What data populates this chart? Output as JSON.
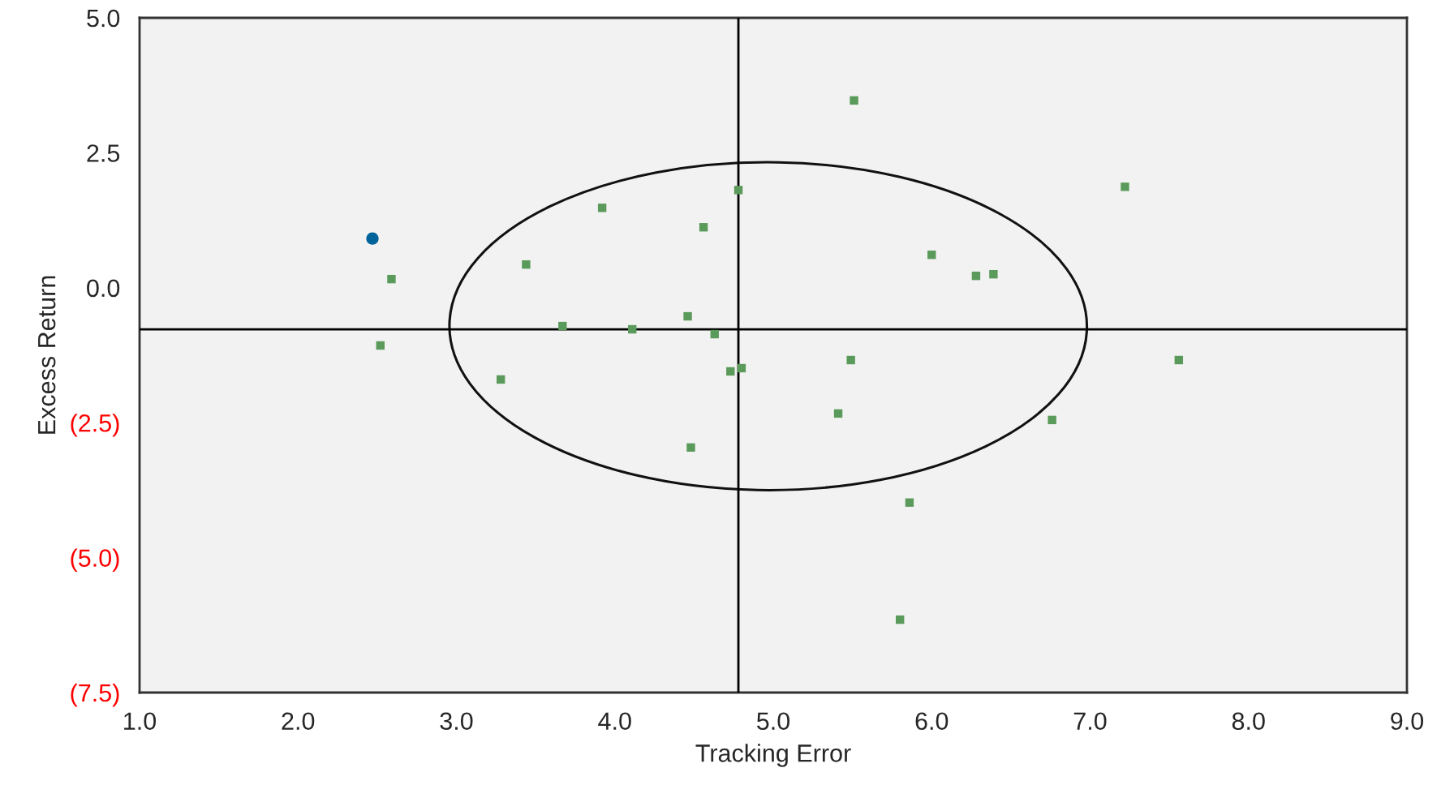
{
  "chart_data": {
    "type": "scatter",
    "xlabel": "Tracking Error",
    "ylabel": "Excess Return",
    "xlim": [
      1.0,
      9.0
    ],
    "xticks": [
      {
        "value": 1,
        "label": "1.0"
      },
      {
        "value": 2,
        "label": "2.0"
      },
      {
        "value": 3,
        "label": "3.0"
      },
      {
        "value": 4,
        "label": "4.0"
      },
      {
        "value": 5,
        "label": "5.0"
      },
      {
        "value": 6,
        "label": "6.0"
      },
      {
        "value": 7,
        "label": "7.0"
      },
      {
        "value": 8,
        "label": "8.0"
      },
      {
        "value": 9,
        "label": "9.0"
      }
    ],
    "ylim": [
      -7.5,
      5.0
    ],
    "yticks": [
      {
        "value": -7.5,
        "label": "(7.5)"
      },
      {
        "value": -5,
        "label": "(5.0)"
      },
      {
        "value": -2.5,
        "label": "(2.5)"
      },
      {
        "value": 0,
        "label": "0.0"
      },
      {
        "value": 2.5,
        "label": "2.5"
      },
      {
        "value": 5,
        "label": "5.0"
      }
    ],
    "grid": false,
    "legend": false,
    "ref_lines": [
      {
        "axis": "x",
        "value": 4.78,
        "color": "#000000"
      },
      {
        "axis": "y",
        "value": -0.77,
        "color": "#000000"
      }
    ],
    "series": [
      {
        "color": "#5a9a5a",
        "marker": "square",
        "x": [
          2.59,
          2.52,
          3.44,
          3.67,
          3.28,
          3.92,
          4.11,
          4.56,
          4.46,
          4.63,
          4.78,
          4.73,
          4.8,
          4.48,
          5.51,
          5.49,
          5.41,
          5.86,
          5.8,
          6.0,
          6.28,
          6.39,
          6.76,
          7.22,
          7.56
        ],
        "values": [
          0.16,
          -1.07,
          0.43,
          -0.71,
          -1.7,
          1.48,
          -0.77,
          1.12,
          -0.53,
          -0.86,
          1.81,
          -1.55,
          -1.49,
          -2.96,
          3.47,
          -1.34,
          -2.33,
          -3.98,
          -6.15,
          0.61,
          0.22,
          0.25,
          -2.45,
          1.87,
          -1.34
        ]
      },
      {
        "color": "#00649b",
        "marker": "circle",
        "x": [
          2.47
        ],
        "values": [
          0.91
        ]
      }
    ]
  }
}
